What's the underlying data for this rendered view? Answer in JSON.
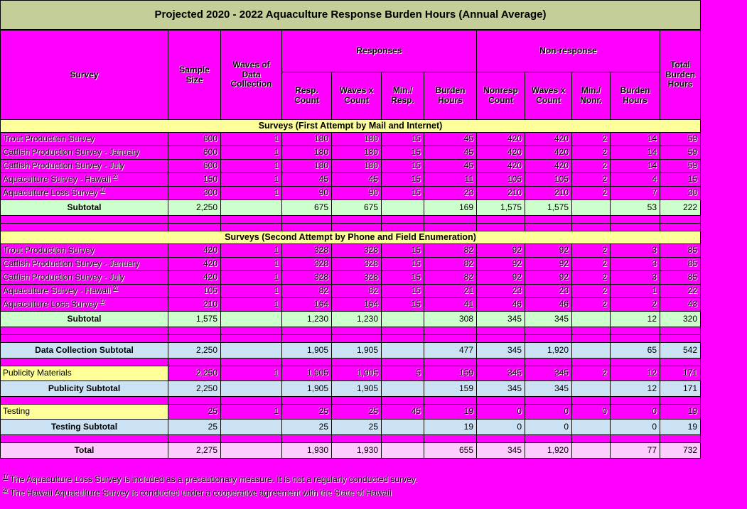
{
  "title": "Projected 2020 - 2022 Aquaculture Response Burden Hours (Annual Average)",
  "columns": {
    "survey": "Survey",
    "sample_size": "Sample Size",
    "waves": "Waves of Data Collection",
    "responses": "Responses",
    "non_response": "Non-response",
    "resp_count": "Resp. Count",
    "resp_waves_x_count": "Waves x Count",
    "min_per_resp": "Min./ Resp.",
    "resp_burden_hours": "Burden Hours",
    "nonresp_count": "Nonresp Count",
    "nonresp_waves_x_count": "Waves x Count",
    "min_per_nonr": "Min./ Nonr.",
    "nonresp_burden_hours": "Burden Hours",
    "total_burden_hours": "Total Burden Hours"
  },
  "colors": {
    "page_background": "#FF00FF",
    "title_bar": "#C4CE98",
    "section_header": "#FFFF99",
    "subtotal_green": "#CCFFCC",
    "subtotal_blue": "#CBE2F5",
    "total_pink": "#FFCCFF",
    "grid_line": "#000000"
  },
  "rows": [
    {
      "type": "section",
      "label": "Surveys (First Attempt by Mail and Internet)"
    },
    {
      "type": "data",
      "label": "Trout Production Survey",
      "cells": [
        "600",
        "1",
        "180",
        "180",
        "15",
        "45",
        "420",
        "420",
        "2",
        "14",
        "59"
      ]
    },
    {
      "type": "data",
      "label": "Catfish Production Survey - January",
      "cells": [
        "600",
        "1",
        "180",
        "180",
        "15",
        "45",
        "420",
        "420",
        "2",
        "14",
        "59"
      ]
    },
    {
      "type": "data",
      "label": "Catfish Production Survey - July",
      "cells": [
        "600",
        "1",
        "180",
        "180",
        "15",
        "45",
        "420",
        "420",
        "2",
        "14",
        "59"
      ]
    },
    {
      "type": "data",
      "label": "Aquaculture Survey - Hawaii",
      "sup": "2/",
      "cells": [
        "150",
        "1",
        "45",
        "45",
        "15",
        "11",
        "105",
        "105",
        "2",
        "4",
        "15"
      ]
    },
    {
      "type": "data",
      "label": "Aquaculture Loss Survey",
      "sup": "1/",
      "cells": [
        "300",
        "1",
        "90",
        "90",
        "15",
        "23",
        "210",
        "210",
        "2",
        "7",
        "30"
      ]
    },
    {
      "type": "subtotal",
      "label": "Subtotal",
      "cells": [
        "2,250",
        "",
        "675",
        "675",
        "",
        "169",
        "1,575",
        "1,575",
        "",
        "53",
        "222"
      ]
    },
    {
      "type": "blank"
    },
    {
      "type": "blank"
    },
    {
      "type": "section",
      "label": "Surveys (Second Attempt by Phone and Field Enumeration)"
    },
    {
      "type": "data",
      "label": "Trout Production Survey",
      "cells": [
        "420",
        "1",
        "328",
        "328",
        "15",
        "82",
        "92",
        "92",
        "2",
        "3",
        "85"
      ]
    },
    {
      "type": "data",
      "label": "Catfish Production Survey - January",
      "cells": [
        "420",
        "1",
        "328",
        "328",
        "15",
        "82",
        "92",
        "92",
        "2",
        "3",
        "85"
      ]
    },
    {
      "type": "data",
      "label": "Catfish Production Survey - July",
      "cells": [
        "420",
        "1",
        "328",
        "328",
        "15",
        "82",
        "92",
        "92",
        "2",
        "3",
        "85"
      ]
    },
    {
      "type": "data",
      "label": "Aquaculture Survey - Hawaii",
      "sup": "2/",
      "cells": [
        "105",
        "1",
        "82",
        "82",
        "15",
        "21",
        "23",
        "23",
        "2",
        "1",
        "22"
      ]
    },
    {
      "type": "data",
      "label": "Aquaculture Loss Survey",
      "sup": "1/",
      "cells": [
        "210",
        "1",
        "164",
        "164",
        "15",
        "41",
        "46",
        "46",
        "2",
        "2",
        "43"
      ]
    },
    {
      "type": "subtotal",
      "label": "Subtotal",
      "cells": [
        "1,575",
        "",
        "1,230",
        "1,230",
        "",
        "308",
        "345",
        "345",
        "",
        "12",
        "320"
      ]
    },
    {
      "type": "blank"
    },
    {
      "type": "blank"
    },
    {
      "type": "blue",
      "label": "Data Collection Subtotal",
      "cells": [
        "2,250",
        "",
        "1,905",
        "1,905",
        "",
        "477",
        "345",
        "1,920",
        "",
        "65",
        "542"
      ]
    },
    {
      "type": "blank"
    },
    {
      "type": "labeldata",
      "label": "Publicity Materials",
      "cells": [
        "2,250",
        "1",
        "1,905",
        "1,905",
        "5",
        "159",
        "345",
        "345",
        "2",
        "12",
        "171"
      ]
    },
    {
      "type": "blue",
      "label": "Publicity Subtotal",
      "cells": [
        "2,250",
        "",
        "1,905",
        "1,905",
        "",
        "159",
        "345",
        "345",
        "",
        "12",
        "171"
      ]
    },
    {
      "type": "blank"
    },
    {
      "type": "labeldata",
      "label": "Testing",
      "cells": [
        "25",
        "1",
        "25",
        "25",
        "45",
        "19",
        "0",
        "0",
        "0",
        "0",
        "19"
      ]
    },
    {
      "type": "blue",
      "label": "Testing Subtotal",
      "cells": [
        "25",
        "",
        "25",
        "25",
        "",
        "19",
        "0",
        "0",
        "",
        "0",
        "19"
      ]
    },
    {
      "type": "blank"
    },
    {
      "type": "total",
      "label": "Total",
      "cells": [
        "2,275",
        "",
        "1,930",
        "1,930",
        "",
        "655",
        "345",
        "1,920",
        "",
        "77",
        "732"
      ]
    }
  ],
  "footnotes": [
    {
      "sup": "1/",
      "text": "The Aquaculture Loss Survey is included as a precautionary measure. It is not a regularly conducted survey."
    },
    {
      "sup": "2/",
      "text": "The Hawaii Aquaculture Survey is conducted under a cooperative agreement with the State of Hawaii"
    }
  ]
}
